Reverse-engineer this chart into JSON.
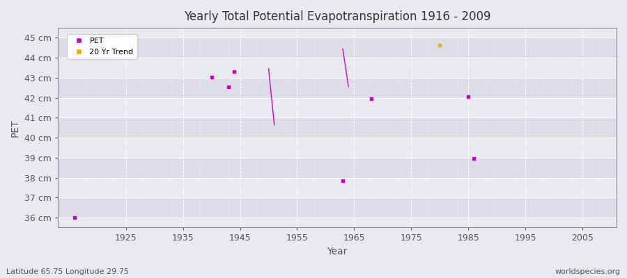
{
  "title": "Yearly Total Potential Evapotranspiration 1916 - 2009",
  "xlabel": "Year",
  "ylabel": "PET",
  "subtitle_left": "Latitude 65.75 Longitude 29.75",
  "subtitle_right": "worldspecies.org",
  "ylim": [
    35.5,
    45.5
  ],
  "xlim": [
    1913,
    2011
  ],
  "yticks": [
    36,
    37,
    38,
    39,
    40,
    41,
    42,
    43,
    44,
    45
  ],
  "ytick_labels": [
    "36 cm",
    "37 cm",
    "38 cm",
    "39 cm",
    "40 cm",
    "41 cm",
    "42 cm",
    "43 cm",
    "44 cm",
    "45 cm"
  ],
  "xticks": [
    1925,
    1935,
    1945,
    1955,
    1965,
    1975,
    1985,
    1995,
    2005
  ],
  "pet_points": [
    [
      1916,
      36.0
    ],
    [
      1940,
      43.05
    ],
    [
      1943,
      42.55
    ],
    [
      1944,
      43.3
    ],
    [
      1963,
      37.85
    ],
    [
      1968,
      41.95
    ],
    [
      1985,
      42.05
    ],
    [
      1986,
      38.95
    ]
  ],
  "orange_point": [
    1980,
    44.65
  ],
  "trend_line_1": {
    "x": [
      1950,
      1951
    ],
    "y": [
      43.45,
      40.65
    ]
  },
  "trend_line_2": {
    "x": [
      1963,
      1964
    ],
    "y": [
      44.45,
      42.55
    ]
  },
  "pet_color": "#CC00CC",
  "trend_color": "#CC00CC",
  "orange_color": "#FFA500",
  "background_color": "#E8EAF0",
  "band_colors": [
    "#DDDDE8",
    "#E8EAF0"
  ],
  "grid_color": "#ffffff",
  "axis_color": "#888888",
  "title_color": "#333333",
  "label_color": "#555555"
}
